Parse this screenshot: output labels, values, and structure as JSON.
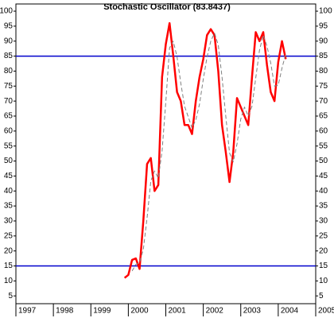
{
  "chart_data": {
    "type": "line",
    "title": "Stochastic Oscillator (83.8437)",
    "x": [
      1999.9,
      2000.0,
      2000.1,
      2000.2,
      2000.3,
      2000.4,
      2000.5,
      2000.6,
      2000.7,
      2000.8,
      2000.9,
      2001.0,
      2001.1,
      2001.2,
      2001.3,
      2001.4,
      2001.5,
      2001.6,
      2001.7,
      2001.8,
      2001.9,
      2002.0,
      2002.1,
      2002.2,
      2002.3,
      2002.4,
      2002.5,
      2002.6,
      2002.7,
      2002.8,
      2002.9,
      2003.0,
      2003.1,
      2003.2,
      2003.3,
      2003.4,
      2003.5,
      2003.6,
      2003.7,
      2003.8,
      2003.9,
      2004.0,
      2004.1,
      2004.2
    ],
    "series": [
      {
        "color": "#ff0000",
        "values": [
          11,
          12,
          17,
          17.5,
          14,
          30,
          49,
          51,
          40,
          42,
          78,
          89,
          96,
          85,
          73,
          70,
          62,
          62,
          59,
          70,
          78,
          84,
          92,
          94,
          92,
          80,
          62,
          53,
          43,
          53,
          71,
          68,
          65,
          62,
          78,
          93,
          90,
          93,
          82,
          73,
          70,
          83,
          90,
          84
        ]
      },
      {
        "color": "#808080",
        "dashed": true,
        "values": [
          null,
          null,
          13.3,
          15.5,
          16.2,
          20.5,
          31,
          43.3,
          46.7,
          44.3,
          53.3,
          69.7,
          87.7,
          90,
          84.7,
          76,
          68.3,
          64.7,
          61,
          63.7,
          69,
          77.3,
          84.7,
          90,
          92.7,
          88.7,
          78,
          65,
          52.7,
          49.7,
          55.7,
          64,
          68,
          65,
          68.3,
          77.7,
          87,
          92,
          88.3,
          82.7,
          75,
          75.3,
          81,
          85.7
        ]
      }
    ],
    "hlines": [
      15,
      85
    ],
    "hline_color": "#0000cc",
    "xlim": [
      1997,
      2005
    ],
    "xticks": [
      1997,
      1998,
      1999,
      2000,
      2001,
      2002,
      2003,
      2004,
      2005
    ],
    "ylim": [
      2.4,
      102.4
    ],
    "yticks": [
      5,
      10,
      15,
      20,
      25,
      30,
      35,
      40,
      45,
      50,
      55,
      60,
      65,
      70,
      75,
      80,
      85,
      90,
      95,
      100
    ]
  }
}
